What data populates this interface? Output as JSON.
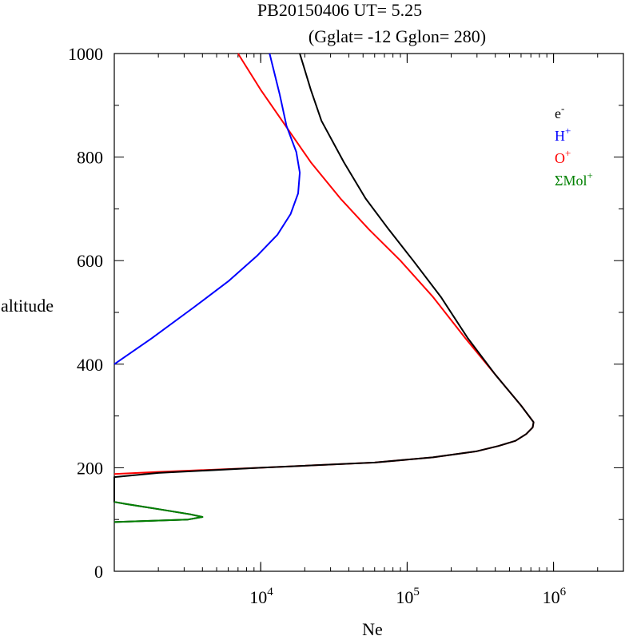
{
  "header": {
    "line1": "PB20150406   UT=  5.25",
    "line2": "(Gglat= -12   Gglon=  280)"
  },
  "chart_data": {
    "type": "line",
    "xlabel": "Ne",
    "ylabel": "altitude",
    "xscale": "log",
    "xlim": [
      1000,
      3000000
    ],
    "ylim": [
      0,
      1000
    ],
    "x_ticks": [
      {
        "base": "10",
        "exp": "4",
        "value": 10000
      },
      {
        "base": "10",
        "exp": "5",
        "value": 100000
      },
      {
        "base": "10",
        "exp": "6",
        "value": 1000000
      }
    ],
    "y_ticks": [
      "0",
      "200",
      "400",
      "600",
      "800",
      "1000"
    ],
    "grid": false,
    "legend_position": "top-right",
    "legend": [
      {
        "base": "e",
        "sup": "-",
        "color": "#000000"
      },
      {
        "base": "H",
        "sup": "+",
        "color": "#0000ff"
      },
      {
        "base": "O",
        "sup": "+",
        "color": "#ff0000"
      },
      {
        "base": "ΣMol",
        "sup": "+",
        "color": "#008000"
      }
    ],
    "series": [
      {
        "color": "#ff0000",
        "points": [
          [
            1000,
            188
          ],
          [
            2000,
            192
          ],
          [
            10000,
            200
          ],
          [
            60000,
            210
          ],
          [
            150000,
            220
          ],
          [
            300000,
            232
          ],
          [
            420000,
            242
          ],
          [
            550000,
            252
          ],
          [
            650000,
            265
          ],
          [
            720000,
            278
          ],
          [
            730000,
            288
          ],
          [
            600000,
            320
          ],
          [
            400000,
            380
          ],
          [
            250000,
            450
          ],
          [
            150000,
            530
          ],
          [
            90000,
            600
          ],
          [
            55000,
            660
          ],
          [
            35000,
            720
          ],
          [
            22000,
            790
          ],
          [
            14000,
            870
          ],
          [
            10000,
            930
          ],
          [
            7000,
            1000
          ]
        ]
      },
      {
        "color": "#0000ff",
        "points": [
          [
            1000,
            400
          ],
          [
            1800,
            450
          ],
          [
            3500,
            510
          ],
          [
            6000,
            560
          ],
          [
            9500,
            610
          ],
          [
            13000,
            650
          ],
          [
            16000,
            690
          ],
          [
            18000,
            730
          ],
          [
            18500,
            770
          ],
          [
            17500,
            810
          ],
          [
            15000,
            860
          ],
          [
            13500,
            920
          ],
          [
            11500,
            1000
          ]
        ]
      },
      {
        "color": "#000000",
        "points": [
          [
            1000,
            95
          ],
          [
            3200,
            100
          ],
          [
            4000,
            105
          ],
          [
            3300,
            110
          ],
          [
            2000,
            120
          ],
          [
            1200,
            130
          ],
          [
            1000,
            134
          ],
          [
            1000,
            182
          ],
          [
            2000,
            190
          ],
          [
            10000,
            200
          ],
          [
            60000,
            210
          ],
          [
            150000,
            220
          ],
          [
            300000,
            232
          ],
          [
            420000,
            242
          ],
          [
            550000,
            252
          ],
          [
            650000,
            265
          ],
          [
            720000,
            278
          ],
          [
            730000,
            288
          ],
          [
            600000,
            320
          ],
          [
            400000,
            380
          ],
          [
            260000,
            450
          ],
          [
            170000,
            530
          ],
          [
            110000,
            600
          ],
          [
            75000,
            660
          ],
          [
            52000,
            720
          ],
          [
            37000,
            790
          ],
          [
            26000,
            870
          ],
          [
            22000,
            930
          ],
          [
            18500,
            1000
          ]
        ]
      },
      {
        "color": "#008000",
        "points": [
          [
            1000,
            95
          ],
          [
            3200,
            100
          ],
          [
            4000,
            105
          ],
          [
            3300,
            110
          ],
          [
            2000,
            120
          ],
          [
            1200,
            130
          ],
          [
            1000,
            134
          ]
        ]
      }
    ]
  }
}
